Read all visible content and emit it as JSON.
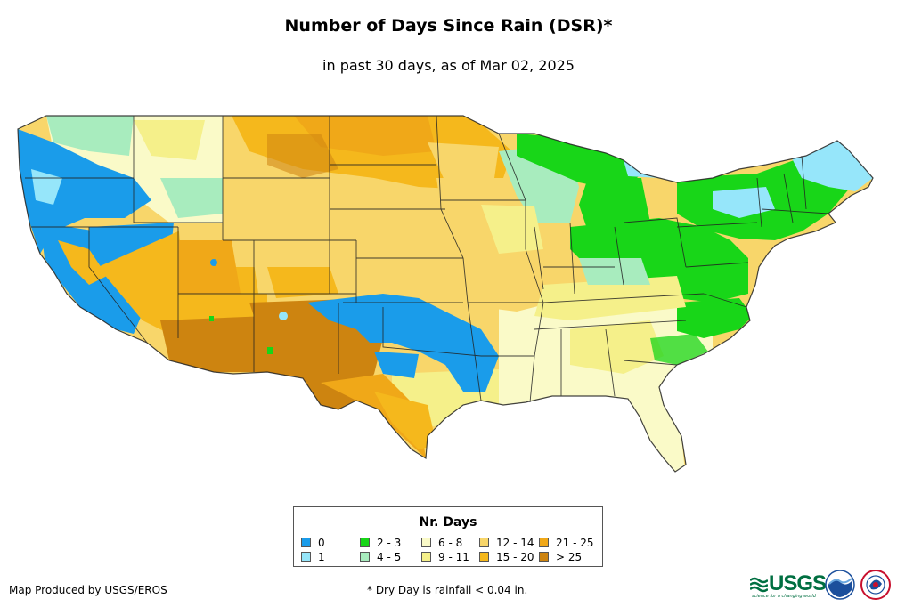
{
  "title": "Number of Days Since Rain (DSR)*",
  "subtitle": "in past 30 days, as of Mar 02, 2025",
  "legend": {
    "title": "Nr. Days",
    "items": [
      {
        "label": "0",
        "color": "#1a9cea"
      },
      {
        "label": "1",
        "color": "#96e6fa"
      },
      {
        "label": "2 - 3",
        "color": "#18d618"
      },
      {
        "label": "4 - 5",
        "color": "#a8ecbe"
      },
      {
        "label": "6 - 8",
        "color": "#fafac8"
      },
      {
        "label": "9 - 11",
        "color": "#f5f08a"
      },
      {
        "label": "12 - 14",
        "color": "#f8d66a"
      },
      {
        "label": "15 - 20",
        "color": "#f5b81c"
      },
      {
        "label": "21 - 25",
        "color": "#f0a818"
      },
      {
        "label": "> 25",
        "color": "#cd8410"
      }
    ]
  },
  "credit": "Map Produced by USGS/EROS",
  "footnote": "* Dry Day is rainfall < 0.04 in.",
  "logos": {
    "usgs": "USGS",
    "usgs_tagline": "science for a changing world"
  }
}
